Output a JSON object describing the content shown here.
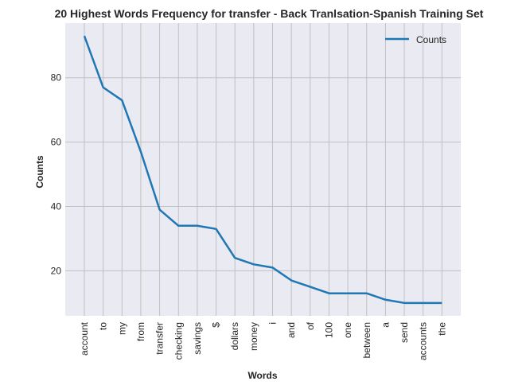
{
  "chart_data": {
    "type": "line",
    "title": "20 Highest Words Frequency for transfer - Back Tranlsation-Spanish Training Set",
    "xlabel": "Words",
    "ylabel": "Counts",
    "categories": [
      "account",
      "to",
      "my",
      "from",
      "transfer",
      "checking",
      "savings",
      "$",
      "dollars",
      "money",
      "i",
      "and",
      "of",
      "100",
      "one",
      "between",
      "a",
      "send",
      "accounts",
      "the"
    ],
    "series": [
      {
        "name": "Counts",
        "values": [
          93,
          77,
          73,
          57,
          39,
          34,
          34,
          33,
          24,
          22,
          21,
          17,
          15,
          13,
          13,
          13,
          11,
          10,
          10,
          10
        ],
        "color": "#1f77b4"
      }
    ],
    "yticks": [
      20,
      40,
      60,
      80
    ],
    "ylim": [
      6,
      97
    ],
    "grid": true,
    "legend": "top-right",
    "background": "#eaeaf2",
    "grid_color": "#c0c0c0"
  }
}
